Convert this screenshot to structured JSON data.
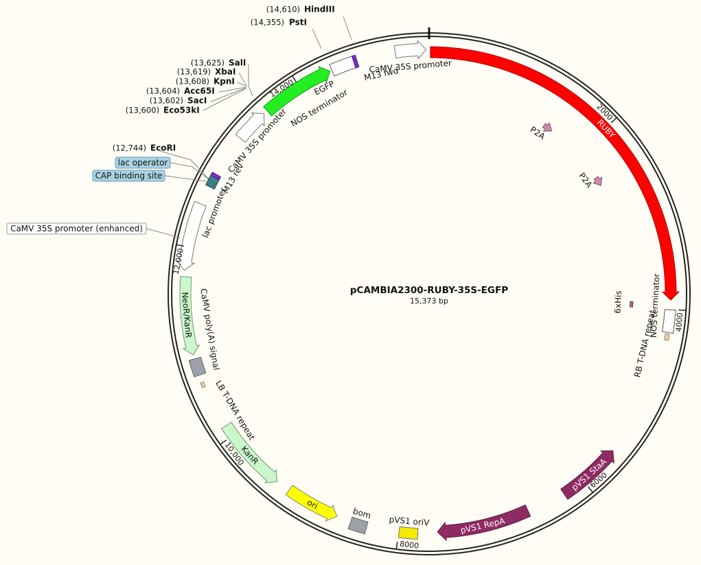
{
  "title": "pCAMBIA2300-RUBY-35S-EGFP",
  "length": "15,373 bp",
  "enzymes": [
    {
      "position": "(14,610)",
      "name": "HindIII"
    },
    {
      "position": "(14,355)",
      "name": "PstI"
    },
    {
      "position": "(13,625)",
      "name": "SalI"
    },
    {
      "position": "(13,619)",
      "name": "XbaI"
    },
    {
      "position": "(13,608)",
      "name": "KpnI"
    },
    {
      "position": "(13,604)",
      "name": "Acc65I"
    },
    {
      "position": "(13,602)",
      "name": "SacI"
    },
    {
      "position": "(13,600)",
      "name": "Eco53kI"
    },
    {
      "position": "(12,744)",
      "name": "EcoRI"
    }
  ],
  "annotations": [
    {
      "label": "lac operator"
    },
    {
      "label": "CAP binding site"
    },
    {
      "label": "CaMV 35S promoter (enhanced)"
    }
  ],
  "features": [
    {
      "label": "RUBY"
    },
    {
      "label": "P2A"
    },
    {
      "label": "P2A"
    },
    {
      "label": "NOS terminator"
    },
    {
      "label": "RB T-DNA repeat"
    },
    {
      "label": "6xHis"
    },
    {
      "label": "pVS1 StaA"
    },
    {
      "label": "pVS1 RepA"
    },
    {
      "label": "pVS1 oriV"
    },
    {
      "label": "bom"
    },
    {
      "label": "ori"
    },
    {
      "label": "KanR"
    },
    {
      "label": "LB T-DNA repeat"
    },
    {
      "label": "CaMV poly(A) signal"
    },
    {
      "label": "NeoR/KanR"
    },
    {
      "label": "lac promoter"
    },
    {
      "label": "M13 rev"
    },
    {
      "label": "CaMV 35S promoter"
    },
    {
      "label": "EGFP"
    },
    {
      "label": "NOS terminator"
    },
    {
      "label": "M13 fwd"
    },
    {
      "label": "CaMV 35S promoter"
    }
  ],
  "ticks": [
    "2000",
    "4000",
    "6000",
    "8000",
    "10,000",
    "12,000",
    "14,000"
  ]
}
